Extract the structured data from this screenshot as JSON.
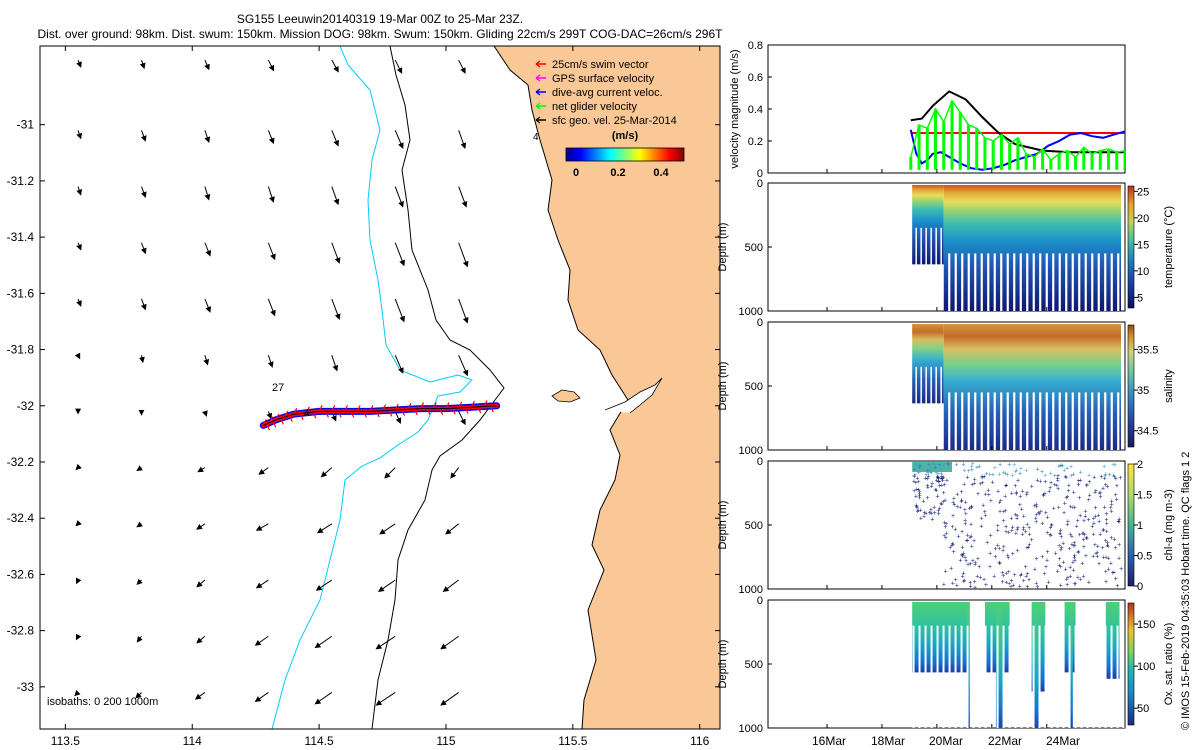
{
  "titles": {
    "line1": "SG155 Leeuwin20140319 19-Mar 00Z to 25-Mar 23Z.",
    "line2": "Dist. over ground: 98km. Dist. swum: 150km. Mission DOG: 98km. Swum: 150km. Gliding 22cm/s 299T COG-DAC=26cm/s 296T"
  },
  "side_note": "© IMOS 15-Feb-2019 04:35:03 Hobart time. QC flags 1  2",
  "colors": {
    "land": "#f9c896",
    "swim": "#ff0000",
    "gps": "#ff00ff",
    "dac": "#0000ff",
    "net": "#00ff00",
    "geo": "#000000",
    "isobath200": "#00ccff"
  },
  "chart_data": [
    {
      "type": "map",
      "name": "glider track map",
      "xlim": [
        113.4,
        116.08
      ],
      "ylim": [
        -33.15,
        -30.72
      ],
      "xticks": [
        113.5,
        114,
        114.5,
        115,
        115.5,
        116
      ],
      "xtick_labels": [
        "113.5",
        "114",
        "114.5",
        "115",
        "115.5",
        "116"
      ],
      "yticks": [
        -31,
        -31.2,
        -31.4,
        -31.6,
        -31.8,
        -32,
        -32.2,
        -32.4,
        -32.6,
        -32.8,
        -33
      ],
      "ytick_labels": [
        "-31",
        "-31.2",
        "-31.4",
        "-31.6",
        "-31.8",
        "-32",
        "-32.2",
        "-32.4",
        "-32.6",
        "-32.8",
        "-33"
      ],
      "legend": [
        {
          "label": "25cm/s swim vector",
          "color": "#ff0000"
        },
        {
          "label": "GPS surface velocity",
          "color": "#ff00ff"
        },
        {
          "label": "dive-avg current veloc.",
          "color": "#0000ff"
        },
        {
          "label": "net glider velocity",
          "color": "#00ff00"
        },
        {
          "label": "sfc geo. vel. 25-Mar-2014",
          "color": "#000000"
        }
      ],
      "colorbar": {
        "title": "(m/s)",
        "range": [
          0,
          0.5
        ],
        "ticks": [
          "0",
          "0.2",
          "0.4"
        ]
      },
      "isobath_label": "isobaths: 0   200  1000m",
      "annotations": [
        "27",
        "4",
        "4"
      ],
      "track": [
        [
          114.28,
          -32.07
        ],
        [
          114.33,
          -32.05
        ],
        [
          114.4,
          -32.03
        ],
        [
          114.5,
          -32.02
        ],
        [
          114.6,
          -32.02
        ],
        [
          114.7,
          -32.02
        ],
        [
          114.8,
          -32.015
        ],
        [
          114.9,
          -32.01
        ],
        [
          115.0,
          -32.01
        ],
        [
          115.1,
          -32.005
        ],
        [
          115.2,
          -32.0
        ]
      ],
      "geo_vectors": {
        "lons": [
          113.55,
          113.8,
          114.05,
          114.3,
          114.55,
          114.8,
          115.05,
          115.3
        ],
        "lats": [
          -30.77,
          -31.02,
          -31.22,
          -31.42,
          -31.62,
          -31.82,
          -32.02,
          -32.22,
          -32.42,
          -32.62,
          -32.82,
          -33.02
        ],
        "u": [
          [
            0.02,
            0.02,
            0.03,
            0.04,
            0.05,
            0.05,
            0.05,
            null
          ],
          [
            0.02,
            0.03,
            0.03,
            0.04,
            0.05,
            0.06,
            0.05,
            null
          ],
          [
            0.02,
            0.03,
            0.03,
            0.04,
            0.05,
            0.06,
            0.06,
            null
          ],
          [
            0.02,
            0.03,
            0.04,
            0.05,
            0.06,
            0.07,
            0.07,
            null
          ],
          [
            0.02,
            0.03,
            0.04,
            0.05,
            0.06,
            0.07,
            0.07,
            null
          ],
          [
            0.01,
            0.01,
            0.02,
            0.03,
            0.04,
            0.06,
            0.07,
            null
          ],
          [
            0.0,
            0.0,
            0.01,
            0.02,
            0.03,
            0.04,
            0.05,
            null
          ],
          [
            -0.01,
            -0.03,
            -0.05,
            -0.07,
            -0.08,
            -0.08,
            -0.06,
            null
          ],
          [
            -0.01,
            -0.03,
            -0.06,
            -0.09,
            -0.11,
            -0.12,
            -0.1,
            null
          ],
          [
            -0.01,
            -0.03,
            -0.06,
            -0.09,
            -0.12,
            -0.13,
            -0.12,
            null
          ],
          [
            -0.01,
            -0.03,
            -0.06,
            -0.1,
            -0.13,
            -0.15,
            -0.14,
            null
          ],
          [
            -0.02,
            -0.04,
            -0.07,
            -0.1,
            -0.13,
            -0.15,
            -0.14,
            null
          ]
        ],
        "v": [
          [
            -0.05,
            -0.06,
            -0.07,
            -0.08,
            -0.09,
            -0.1,
            -0.1,
            null
          ],
          [
            -0.06,
            -0.08,
            -0.09,
            -0.1,
            -0.12,
            -0.14,
            -0.14,
            null
          ],
          [
            -0.06,
            -0.08,
            -0.1,
            -0.12,
            -0.14,
            -0.16,
            -0.16,
            null
          ],
          [
            -0.05,
            -0.08,
            -0.1,
            -0.13,
            -0.16,
            -0.18,
            -0.19,
            null
          ],
          [
            -0.05,
            -0.08,
            -0.1,
            -0.13,
            -0.16,
            -0.18,
            -0.19,
            null
          ],
          [
            -0.02,
            -0.05,
            -0.07,
            -0.09,
            -0.12,
            -0.14,
            -0.16,
            null
          ],
          [
            -0.01,
            -0.02,
            -0.03,
            -0.05,
            -0.07,
            -0.09,
            -0.1,
            null
          ],
          [
            -0.01,
            -0.02,
            -0.03,
            -0.05,
            -0.07,
            -0.08,
            -0.08,
            null
          ],
          [
            -0.01,
            -0.02,
            -0.04,
            -0.05,
            -0.07,
            -0.08,
            -0.08,
            null
          ],
          [
            -0.02,
            -0.03,
            -0.05,
            -0.06,
            -0.08,
            -0.09,
            -0.09,
            null
          ],
          [
            -0.02,
            -0.04,
            -0.05,
            -0.07,
            -0.09,
            -0.1,
            -0.1,
            null
          ],
          [
            -0.02,
            -0.04,
            -0.05,
            -0.07,
            -0.09,
            -0.1,
            -0.1,
            null
          ]
        ]
      }
    },
    {
      "type": "line",
      "name": "velocity magnitude",
      "ylabel": "velocity magnitude (m/s)",
      "xlim": [
        14.0,
        27.0
      ],
      "ylim": [
        0,
        0.8
      ],
      "yticks": [
        "0",
        "0.2",
        "0.4",
        "0.6",
        "0.8"
      ],
      "series": [
        {
          "name": "25cm/s swim vector",
          "color": "#ff0000",
          "x": [
            19.2,
            27.0
          ],
          "y": [
            0.25,
            0.25
          ]
        },
        {
          "name": "sfc geo. vel.",
          "color": "#000000",
          "x": [
            19.2,
            19.6,
            20.0,
            20.6,
            21.2,
            21.8,
            22.4,
            23.0,
            24.0,
            25.0,
            26.0,
            27.0
          ],
          "y": [
            0.33,
            0.34,
            0.42,
            0.51,
            0.46,
            0.35,
            0.25,
            0.18,
            0.14,
            0.13,
            0.13,
            0.13
          ]
        },
        {
          "name": "dive-avg current veloc.",
          "color": "#0000ff",
          "x": [
            19.2,
            19.4,
            19.6,
            19.8,
            20.0,
            20.3,
            20.6,
            21.0,
            21.4,
            21.8,
            22.2,
            22.6,
            23.0,
            23.4,
            23.8,
            24.2,
            24.6,
            25.0,
            25.4,
            25.8,
            26.2,
            26.6,
            27.0
          ],
          "y": [
            0.27,
            0.12,
            0.06,
            0.08,
            0.12,
            0.13,
            0.1,
            0.06,
            0.03,
            0.02,
            0.03,
            0.05,
            0.08,
            0.1,
            0.12,
            0.17,
            0.2,
            0.24,
            0.25,
            0.23,
            0.22,
            0.24,
            0.26
          ]
        },
        {
          "name": "net glider velocity",
          "color": "#00ff00",
          "x": [
            19.2,
            19.5,
            19.8,
            20.1,
            20.4,
            20.7,
            21.0,
            21.3,
            21.6,
            21.9,
            22.2,
            22.5,
            22.8,
            23.1,
            23.4,
            23.7,
            24.0,
            24.3,
            24.6,
            24.9,
            25.2,
            25.5,
            25.8,
            26.1,
            26.4,
            26.7,
            27.0
          ],
          "y": [
            0.1,
            0.3,
            0.28,
            0.4,
            0.32,
            0.45,
            0.38,
            0.3,
            0.28,
            0.22,
            0.2,
            0.24,
            0.18,
            0.22,
            0.12,
            0.1,
            0.15,
            0.08,
            0.12,
            0.14,
            0.1,
            0.16,
            0.12,
            0.14,
            0.15,
            0.13,
            0.14
          ]
        }
      ]
    },
    {
      "type": "heatmap",
      "name": "temperature section",
      "ylabel": "Depth (m)",
      "yticks": [
        "0",
        "500",
        "1000"
      ],
      "colorbar_label": "temperature (°C)",
      "colorbar_ticks": [
        "25",
        "20",
        "15",
        "10",
        "5"
      ],
      "vrange": [
        3,
        26
      ]
    },
    {
      "type": "heatmap",
      "name": "salinity section",
      "ylabel": "Depth (m)",
      "yticks": [
        "0",
        "500",
        "1000"
      ],
      "colorbar_label": "salinity",
      "colorbar_ticks": [
        "35.5",
        "35",
        "34.5"
      ],
      "vrange": [
        34.3,
        35.8
      ]
    },
    {
      "type": "scatter",
      "name": "chlorophyll section",
      "ylabel": "Depth (m)",
      "yticks": [
        "0",
        "500",
        "1000"
      ],
      "colorbar_label": "chl-a (mg m-3)",
      "colorbar_ticks": [
        "2",
        "1.5",
        "1",
        "0.5",
        "0"
      ],
      "vrange": [
        0,
        2
      ]
    },
    {
      "type": "heatmap",
      "name": "oxygen saturation section",
      "ylabel": "Depth (m)",
      "yticks": [
        "0",
        "500",
        "1000"
      ],
      "colorbar_label": "Ox. sat. ratio (%)",
      "colorbar_ticks": [
        "150",
        "100",
        "50"
      ],
      "vrange": [
        30,
        175
      ],
      "x_ticks": [
        "16Mar",
        "18Mar",
        "20Mar",
        "22Mar",
        "24Mar"
      ]
    }
  ]
}
